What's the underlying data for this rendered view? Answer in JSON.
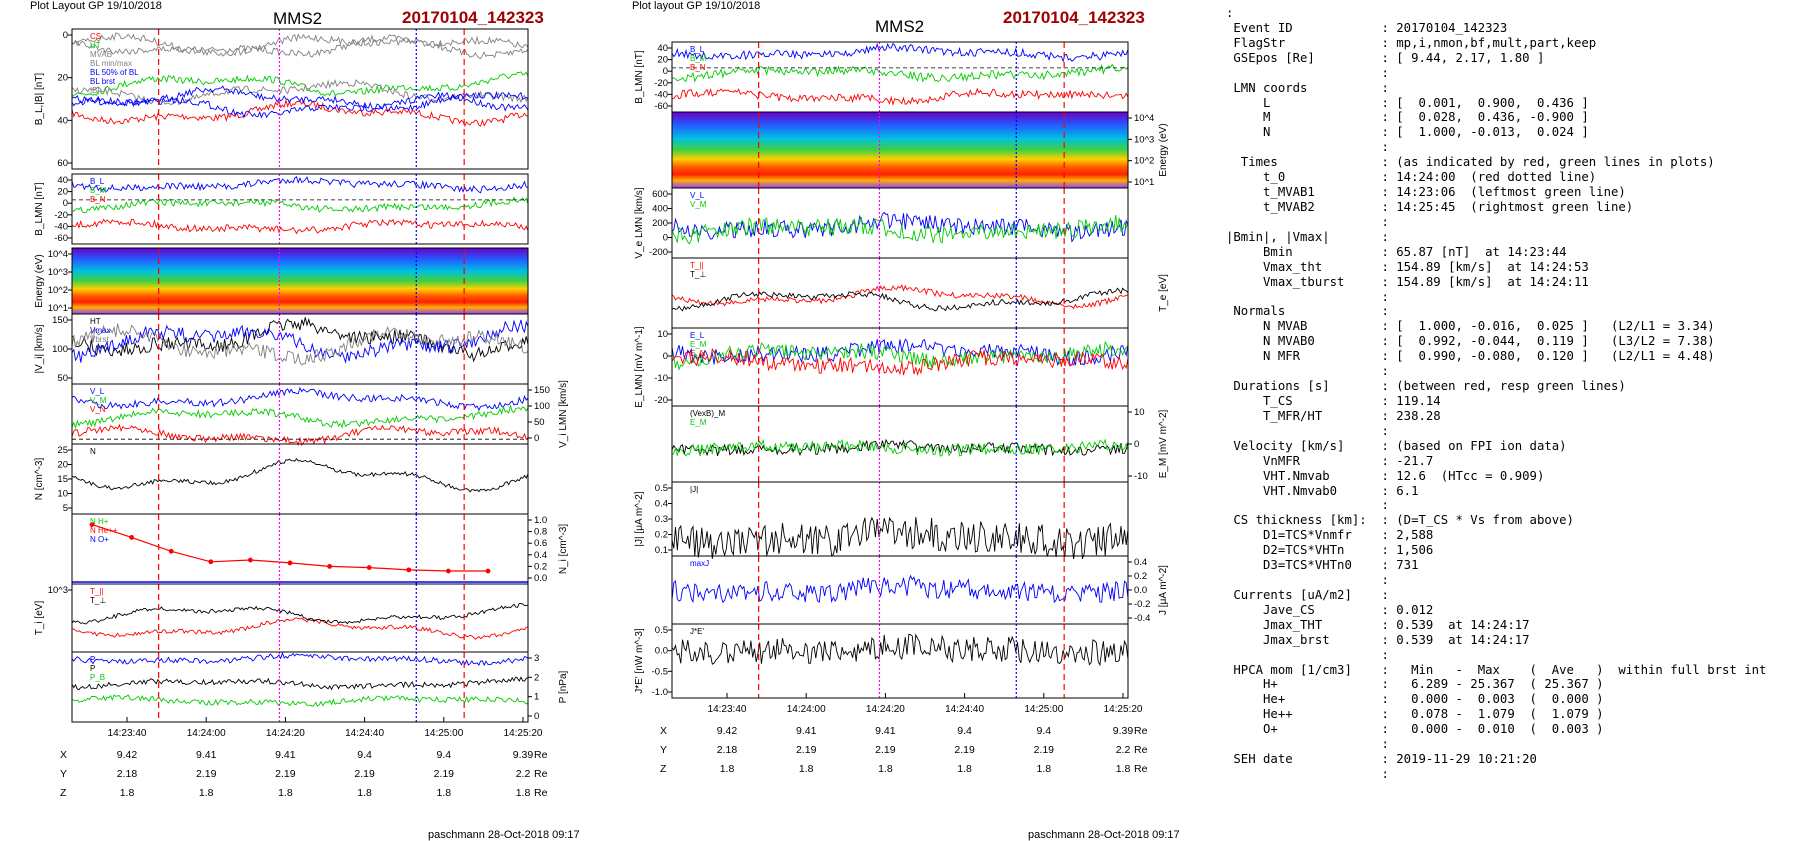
{
  "left_header": {
    "layout": "Plot Layout GP 19/10/2018",
    "spacecraft": "MMS2",
    "event": "20170104_142323"
  },
  "mid_header": {
    "layout": "Plot layout GP 19/10/2018",
    "spacecraft": "MMS2",
    "event": "20170104_142323"
  },
  "footer_left": "paschmann 28-Oct-2018 09:17",
  "footer_mid": "paschmann 28-Oct-2018 09:17",
  "colors": {
    "red": "#ff0000",
    "green": "#00cc00",
    "blue": "#0000ff",
    "black": "#000000",
    "gray": "#808080",
    "magenta": "#ff00ff",
    "event": "#a00000"
  },
  "chart_data": [
    {
      "type": "line",
      "time_ticks": [
        "14:23:40",
        "14:24:00",
        "14:24:20",
        "14:24:40",
        "14:25:00",
        "14:25:20"
      ],
      "position_table": {
        "rows": [
          {
            "label": "X",
            "values": [
              "9.42",
              "9.41",
              "9.41",
              "9.4",
              "9.4",
              "9.39"
            ],
            "unit": "Re"
          },
          {
            "label": "Y",
            "values": [
              "2.18",
              "2.19",
              "2.19",
              "2.19",
              "2.19",
              "2.2"
            ],
            "unit": "Re"
          },
          {
            "label": "Z",
            "values": [
              "1.8",
              "1.8",
              "1.8",
              "1.8",
              "1.8",
              "1.8"
            ],
            "unit": "Re"
          }
        ]
      },
      "panels": [
        {
          "ylabel": "B_L,|B| [nT]",
          "yticks": [
            "0",
            "20",
            "40",
            "60"
          ],
          "legend": [
            "CS",
            "HT",
            "MVAB",
            "BL min/max",
            "BL 50% of BL",
            "BL brst",
            "|B|"
          ]
        },
        {
          "ylabel": "B_LMN [nT]",
          "yticks": [
            "40",
            "20",
            "0",
            "-20",
            "-40",
            "-60"
          ],
          "legend": [
            "B_L",
            "B_M",
            "B_N"
          ]
        },
        {
          "ylabel": "Energy (eV)",
          "yticks": [
            "10^4",
            "10^3",
            "10^2",
            "10^1"
          ],
          "type": "heatmap"
        },
        {
          "ylabel": "|V_i| [km/s]",
          "yticks": [
            "150",
            "100",
            "50"
          ],
          "legend": [
            "HT",
            "Vmax",
            "Vbrst"
          ]
        },
        {
          "ylabel": "V_i LMN [km/s]",
          "yticks": [
            "150",
            "100",
            "50",
            "0"
          ],
          "legend": [
            "V_L",
            "V_M",
            "V_N"
          ]
        },
        {
          "ylabel": "N [cm^-3]",
          "yticks": [
            "25",
            "20",
            "15",
            "10",
            "5"
          ],
          "legend": [
            "N"
          ]
        },
        {
          "ylabel": "N_i [cm^-3]",
          "yticks": [
            "1.0",
            "0.8",
            "0.6",
            "0.4",
            "0.2",
            "0.0"
          ],
          "legend": [
            "N H+",
            "N He++",
            "N O+"
          ],
          "series_points": [
            0.92,
            0.7,
            0.46,
            0.28,
            0.31,
            0.26,
            0.2,
            0.18,
            0.14,
            0.12,
            0.12
          ]
        },
        {
          "ylabel": "T_i [eV]",
          "yticks": [
            "10^3"
          ],
          "legend": [
            "T_||",
            "T_⊥"
          ]
        },
        {
          "ylabel": "P [nPa]",
          "yticks": [
            "3",
            "2",
            "1",
            "0"
          ],
          "legend": [
            "P",
            "P",
            "P_B"
          ]
        }
      ]
    },
    {
      "type": "line",
      "time_ticks": [
        "14:23:40",
        "14:24:00",
        "14:24:20",
        "14:24:40",
        "14:25:00",
        "14:25:20"
      ],
      "position_table": {
        "rows": [
          {
            "label": "X",
            "values": [
              "9.42",
              "9.41",
              "9.41",
              "9.4",
              "9.4",
              "9.39"
            ],
            "unit": "Re"
          },
          {
            "label": "Y",
            "values": [
              "2.18",
              "2.19",
              "2.19",
              "2.19",
              "2.19",
              "2.2"
            ],
            "unit": "Re"
          },
          {
            "label": "Z",
            "values": [
              "1.8",
              "1.8",
              "1.8",
              "1.8",
              "1.8",
              "1.8"
            ],
            "unit": "Re"
          }
        ]
      },
      "panels": [
        {
          "ylabel": "B_LMN [nT]",
          "yticks": [
            "40",
            "20",
            "0",
            "-20",
            "-40",
            "-60"
          ],
          "legend": [
            "B_L",
            "B_M",
            "B_N"
          ]
        },
        {
          "ylabel": "Energy (eV)",
          "yticks": [
            "10^4",
            "10^3",
            "10^2",
            "10^1"
          ],
          "type": "heatmap"
        },
        {
          "ylabel": "V_e LMN [km/s]",
          "yticks": [
            "600",
            "400",
            "200",
            "0",
            "-200"
          ],
          "legend": [
            "V_L",
            "V_M"
          ]
        },
        {
          "ylabel": "T_e [eV]",
          "yticks": [],
          "legend": [
            "T_||",
            "T_⊥"
          ]
        },
        {
          "ylabel": "E_LMN [mV m^-1]",
          "yticks": [
            "10",
            "0",
            "-10",
            "-20"
          ],
          "legend": [
            "E_L",
            "E_M",
            "E_N"
          ]
        },
        {
          "ylabel": "E_M [mV m^-2]",
          "yticks": [
            "10",
            "0",
            "-10"
          ],
          "legend": [
            "(VexB)_M",
            "E_M"
          ]
        },
        {
          "ylabel": "|J| [μA m^-2]",
          "yticks": [
            "0.5",
            "0.4",
            "0.3",
            "0.2",
            "0.1"
          ],
          "legend": [
            "|J|"
          ]
        },
        {
          "ylabel": "J [μA m^-2]",
          "yticks": [
            "0.4",
            "0.2",
            "0.0",
            "-0.2",
            "-0.4"
          ],
          "legend": [
            "maxJ"
          ]
        },
        {
          "ylabel": "J*E' [nW m^-3]",
          "yticks": [
            "0.5",
            "0.0",
            "-0.5",
            "-1.0"
          ],
          "legend": [
            "J*E'"
          ]
        }
      ]
    }
  ],
  "info_lines": [
    ":",
    " Event ID            : 20170104_142323",
    " FlagStr             : mp,i,nmon,bf,mult,part,keep",
    " GSEpos [Re]         : [ 9.44, 2.17, 1.80 ]",
    "                     :",
    " LMN coords          :",
    "     L               : [  0.001,  0.900,  0.436 ]",
    "     M               : [  0.028,  0.436, -0.900 ]",
    "     N               : [  1.000, -0.013,  0.024 ]",
    "                     :",
    "  Times              : (as indicated by red, green lines in plots)",
    "     t_0             : 14:24:00  (red dotted line)",
    "     t_MVAB1         : 14:23:06  (leftmost green line)",
    "     t_MVAB2         : 14:25:45  (rightmost green line)",
    "                     :",
    "|Bmin|, |Vmax|       :",
    "     Bmin            : 65.87 [nT]  at 14:23:44",
    "     Vmax_tht        : 154.89 [km/s]  at 14:24:53",
    "     Vmax_tburst     : 154.89 [km/s]  at 14:24:11",
    "                     :",
    " Normals             :",
    "     N MVAB          : [  1.000, -0.016,  0.025 ]   (L2/L1 = 3.34)",
    "     N MVAB0         : [  0.992, -0.044,  0.119 ]   (L3/L2 = 7.38)",
    "     N MFR           : [  0.990, -0.080,  0.120 ]   (L2/L1 = 4.48)",
    "                     :",
    " Durations [s]       : (between red, resp green lines)",
    "     T_CS            : 119.14",
    "     T_MFR/HT        : 238.28",
    "                     :",
    " Velocity [km/s]     : (based on FPI ion data)",
    "     VnMFR           : -21.7",
    "     VHT.Nmvab       : 12.6  (HTcc = 0.909)",
    "     VHT.Nmvab0      : 6.1",
    "                     :",
    " CS thickness [km]:  : (D=T_CS * Vs from above)",
    "     D1=TCS*Vnmfr    : 2,588",
    "     D2=TCS*VHTn     : 1,506",
    "     D3=TCS*VHTn0    : 731",
    "                     :",
    " Currents [uA/m2]    :",
    "     Jave_CS         : 0.012",
    "     Jmax_THT        : 0.539  at 14:24:17",
    "     Jmax_brst       : 0.539  at 14:24:17",
    "                     :",
    " HPCA mom [1/cm3]    :   Min   -  Max    (  Ave   )  within full brst int",
    "     H+              :   6.289 - 25.367  ( 25.367 )",
    "     He+             :   0.000 -  0.003  (  0.000 )",
    "     He++            :   0.078 -  1.079  (  1.079 )",
    "     O+              :   0.000 -  0.010  (  0.003 )",
    "                     :",
    " SEH date            : 2019-11-29 10:21:20",
    "                     :"
  ]
}
